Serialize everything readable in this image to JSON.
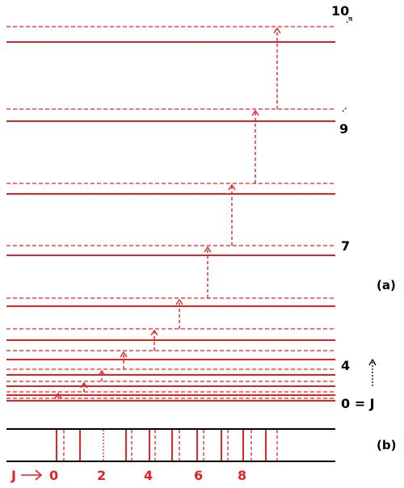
{
  "colors": {
    "level": "#e32222",
    "axis": "#000000",
    "label": "#000000"
  },
  "panel_a": {
    "label": "(a)",
    "level_labels": [
      {
        "J": 10,
        "text": "10"
      },
      {
        "J": 9,
        "text": "9"
      },
      {
        "J": 7,
        "text": "7"
      },
      {
        "J": 4,
        "text": "4"
      },
      {
        "J": 0,
        "text": "0 = J"
      }
    ],
    "transitions": [
      {
        "from_J": 0,
        "to_J": 1
      },
      {
        "from_J": 1,
        "to_J": 2
      },
      {
        "from_J": 2,
        "to_J": 3
      },
      {
        "from_J": 3,
        "to_J": 4
      },
      {
        "from_J": 4,
        "to_J": 5
      },
      {
        "from_J": 5,
        "to_J": 6
      },
      {
        "from_J": 6,
        "to_J": 7
      },
      {
        "from_J": 7,
        "to_J": 8
      },
      {
        "from_J": 8,
        "to_J": 9
      },
      {
        "from_J": 9,
        "to_J": 10
      }
    ]
  },
  "panel_b": {
    "label": "(b)",
    "axis_label": "J",
    "tick_labels": [
      "0",
      "2",
      "4",
      "6",
      "8"
    ]
  }
}
